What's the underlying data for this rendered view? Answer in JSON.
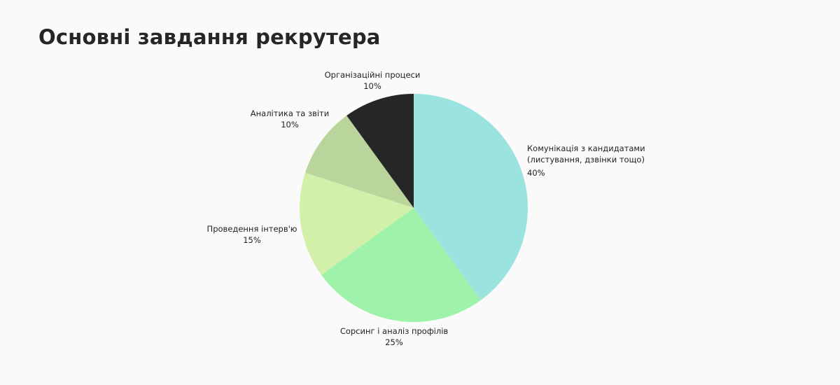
{
  "title": "Основні завдання рекрутера",
  "chart_data": {
    "type": "pie",
    "title": "Основні завдання рекрутера",
    "start_angle_deg": 0,
    "direction": "clockwise",
    "slices": [
      {
        "label": "Комунікація з кандидатами (листування, дзвінки тощо)",
        "label_line1": "Комунікація з кандидатами",
        "label_line2": "(листування, дзвінки тощо)",
        "value": 40,
        "pct": "40%",
        "color": "#9be3df"
      },
      {
        "label": "Сорсинг і аналіз профілів",
        "value": 25,
        "pct": "25%",
        "color": "#9ef2a9"
      },
      {
        "label": "Проведення інтерв'ю",
        "value": 15,
        "pct": "15%",
        "color": "#d3f0aa"
      },
      {
        "label": "Аналітика та звіти",
        "value": 10,
        "pct": "10%",
        "color": "#b9d59b"
      },
      {
        "label": "Організаційні процеси",
        "value": 10,
        "pct": "10%",
        "color": "#262626"
      }
    ],
    "legend": "none (labels outside slices)"
  }
}
